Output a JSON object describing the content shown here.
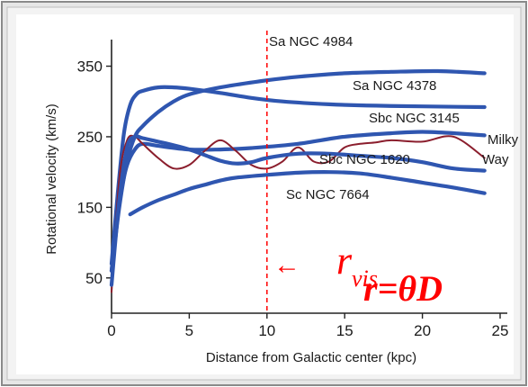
{
  "chart_data": {
    "type": "line",
    "xlabel": "Distance from Galactic center (kpc)",
    "ylabel": "Rotational velocity (km/s)",
    "xlim": [
      0,
      25
    ],
    "ylim": [
      0,
      380
    ],
    "x_ticks": [
      "0",
      "5",
      "10",
      "15",
      "20",
      "25"
    ],
    "y_ticks": [
      "50",
      "150",
      "250",
      "350"
    ],
    "grid": false,
    "series": [
      {
        "name": "Sa NGC 4984",
        "color": "#2f56b0",
        "x": [
          0,
          0.5,
          1,
          1.5,
          2,
          3,
          4,
          5,
          7,
          10,
          12,
          15,
          18,
          21,
          24
        ],
        "y": [
          60,
          150,
          215,
          250,
          265,
          285,
          300,
          310,
          320,
          330,
          335,
          340,
          342,
          343,
          340
        ]
      },
      {
        "name": "Sa NGC 4378",
        "color": "#2f56b0",
        "x": [
          0,
          0.4,
          0.8,
          1.2,
          1.6,
          2,
          3,
          4,
          5,
          7,
          9,
          11,
          14,
          17,
          20,
          24
        ],
        "y": [
          70,
          170,
          255,
          295,
          310,
          315,
          320,
          320,
          318,
          312,
          305,
          300,
          296,
          294,
          293,
          292
        ]
      },
      {
        "name": "Sbc NGC 3145",
        "color": "#2f56b0",
        "x": [
          0,
          0.3,
          0.6,
          1,
          1.5,
          2,
          3,
          5,
          7,
          9,
          12,
          15,
          18,
          20,
          22,
          24
        ],
        "y": [
          60,
          120,
          170,
          210,
          232,
          240,
          237,
          232,
          232,
          234,
          240,
          250,
          255,
          257,
          255,
          252
        ]
      },
      {
        "name": "Milky Way",
        "color": "#8b1e2d",
        "x": [
          0,
          0.5,
          1,
          1.5,
          2,
          3,
          4,
          5,
          6,
          7,
          8,
          9,
          10,
          11,
          12,
          13,
          14,
          15,
          16,
          17,
          18,
          20,
          22,
          24
        ],
        "y": [
          30,
          190,
          245,
          250,
          240,
          220,
          205,
          210,
          230,
          245,
          230,
          210,
          205,
          215,
          235,
          215,
          215,
          235,
          240,
          242,
          245,
          243,
          250,
          220
        ]
      },
      {
        "name": "Sbc NGC 1620",
        "color": "#2f56b0",
        "x": [
          0,
          0.5,
          1,
          1.5,
          2,
          3,
          4,
          5,
          6,
          7,
          8,
          9,
          10,
          12,
          14,
          16,
          18,
          20,
          22,
          24
        ],
        "y": [
          40,
          160,
          235,
          250,
          248,
          243,
          238,
          232,
          224,
          216,
          212,
          214,
          220,
          226,
          226,
          223,
          220,
          214,
          205,
          202
        ]
      },
      {
        "name": "Sc NGC 7664",
        "color": "#2f56b0",
        "x": [
          1.2,
          2,
          3,
          4,
          5,
          6,
          7,
          8,
          10,
          12,
          14,
          16,
          18,
          20,
          22,
          24
        ],
        "y": [
          140,
          150,
          160,
          168,
          176,
          182,
          188,
          192,
          196,
          199,
          200,
          198,
          192,
          185,
          178,
          170
        ]
      }
    ],
    "annotations": {
      "vertical_line_x": 10,
      "vertical_line_color": "#ff0000",
      "arrow": "←",
      "r_symbol": "r",
      "r_subscript": "vis",
      "formula": "r=θD"
    }
  }
}
